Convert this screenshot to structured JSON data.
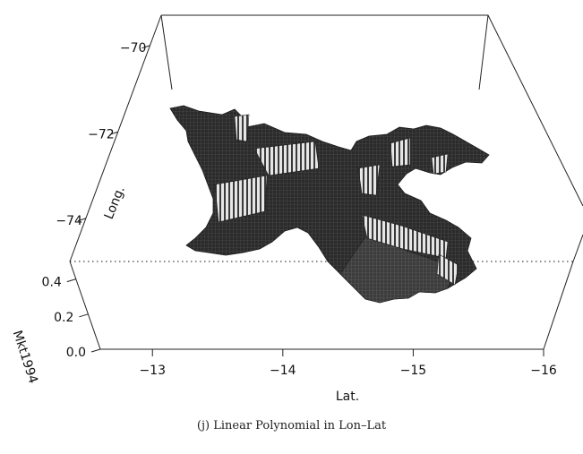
{
  "chart_data": {
    "type": "3d-surface",
    "xlabel": "Lat.",
    "ylabel": "Long.",
    "zlabel": "Mkt1994",
    "x_ticks": [
      "−13",
      "−14",
      "−15",
      "−16"
    ],
    "y_ticks": [
      "−70",
      "−72",
      "−74"
    ],
    "z_ticks": [
      "0.0",
      "0.2",
      "0.4"
    ],
    "x_tick_values": [
      -13,
      -14,
      -15,
      -16
    ],
    "y_tick_values": [
      -70,
      -72,
      -74
    ],
    "z_tick_values": [
      0.0,
      0.2,
      0.4
    ],
    "xlim": [
      -12.6,
      -16
    ],
    "ylim": [
      -69.3,
      -75
    ],
    "zlim": [
      0,
      0.5
    ],
    "reference_plane_z": 0.25,
    "surface_color": "#2b2b2b",
    "highlight_color": "#d8d8d8",
    "box": true,
    "legend": "none"
  },
  "caption": "(j) Linear Polynomial in Lon–Lat"
}
